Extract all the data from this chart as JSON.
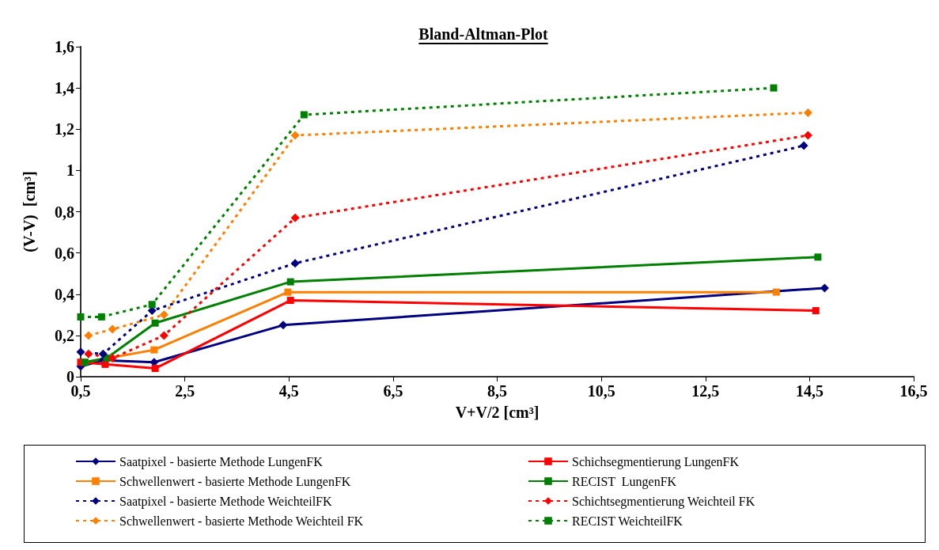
{
  "chart_data": {
    "type": "line",
    "title": "Bland-Altman-Plot",
    "xlabel": "V+V/2 [cm³]",
    "ylabel": "(V-V)  [cm³]",
    "xlim": [
      0.5,
      16.5
    ],
    "xticks": [
      {
        "value": 0.5,
        "label": "0,5"
      },
      {
        "value": 2.5,
        "label": "2,5"
      },
      {
        "value": 4.5,
        "label": "4,5"
      },
      {
        "value": 6.5,
        "label": "6,5"
      },
      {
        "value": 8.5,
        "label": "8,5"
      },
      {
        "value": 10.5,
        "label": "10,5"
      },
      {
        "value": 12.5,
        "label": "12,5"
      },
      {
        "value": 14.5,
        "label": "14,5"
      },
      {
        "value": 16.5,
        "label": "16,5"
      }
    ],
    "ylim": [
      0,
      1.6
    ],
    "yticks": [
      0,
      {
        "value": 0.2,
        "label": "0,2"
      },
      {
        "value": 0.4,
        "label": "0,4"
      },
      {
        "value": 0.6,
        "label": "0,6"
      },
      {
        "value": 0.8,
        "label": "0,8"
      },
      1,
      {
        "value": 1.2,
        "label": "1,2"
      },
      {
        "value": 1.4,
        "label": "1,4"
      },
      {
        "value": 1.6,
        "label": "1,6"
      }
    ],
    "grid": false,
    "legend": "bottom",
    "series": [
      {
        "name": "Saatpixel - basierte Methode LungenFK",
        "color": "#000080",
        "marker": "diamond",
        "line_style": "solid",
        "x": [
          0.5,
          0.93,
          1.91,
          4.39,
          14.79
        ],
        "values": [
          0.05,
          0.08,
          0.07,
          0.25,
          0.43
        ]
      },
      {
        "name": "Schichsegmentierung LungenFK",
        "color": "#ff0000",
        "marker": "square",
        "line_style": "solid",
        "x": [
          0.5,
          0.97,
          1.93,
          4.53,
          14.62
        ],
        "values": [
          0.07,
          0.06,
          0.04,
          0.37,
          0.32
        ]
      },
      {
        "name": "Schwellenwert - basierte Methode LungenFK",
        "color": "#ff7f00",
        "marker": "square",
        "line_style": "solid",
        "x": [
          0.58,
          1.03,
          1.91,
          4.48,
          13.86
        ],
        "values": [
          0.07,
          0.09,
          0.13,
          0.41,
          0.41
        ]
      },
      {
        "name": "RECIST  LungenFK",
        "color": "#008000",
        "marker": "square",
        "line_style": "solid",
        "x": [
          0.58,
          1.0,
          1.93,
          4.53,
          14.66
        ],
        "values": [
          0.07,
          0.09,
          0.26,
          0.46,
          0.58
        ]
      },
      {
        "name": "Saatpixel - basierte Methode WeichteilFK",
        "color": "#000080",
        "marker": "diamond",
        "line_style": "dashed",
        "x": [
          0.5,
          0.93,
          1.87,
          4.62,
          14.39
        ],
        "values": [
          0.12,
          0.11,
          0.32,
          0.55,
          1.12
        ]
      },
      {
        "name": "Schichtsegmentierung Weichteil FK",
        "color": "#ff0000",
        "marker": "diamond",
        "line_style": "dashed",
        "x": [
          0.65,
          1.11,
          2.1,
          4.62,
          14.47
        ],
        "values": [
          0.11,
          0.09,
          0.2,
          0.77,
          1.17
        ]
      },
      {
        "name": "Schwellenwert - basierte Methode Weichteil FK",
        "color": "#ff7f00",
        "marker": "diamond",
        "line_style": "dashed",
        "x": [
          0.65,
          1.11,
          2.1,
          4.62,
          14.47
        ],
        "values": [
          0.2,
          0.23,
          0.3,
          1.17,
          1.28
        ]
      },
      {
        "name": "RECIST WeichteilFK",
        "color": "#008000",
        "marker": "square",
        "line_style": "dashed",
        "x": [
          0.5,
          0.9,
          1.87,
          4.79,
          13.81
        ],
        "values": [
          0.29,
          0.29,
          0.35,
          1.27,
          1.4
        ]
      }
    ]
  }
}
